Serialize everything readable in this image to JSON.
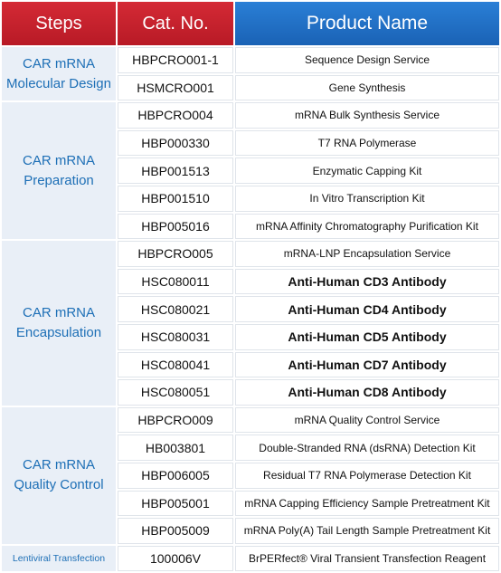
{
  "header": [
    "Steps",
    "Cat. No.",
    "Product Name"
  ],
  "groups": [
    {
      "step": [
        "CAR mRNA",
        "Molecular Design"
      ],
      "rows": [
        [
          "HBPCRO001-1",
          "Sequence Design Service"
        ],
        [
          "HSMCRO001",
          "Gene Synthesis"
        ]
      ]
    },
    {
      "step": [
        "CAR mRNA",
        "Preparation"
      ],
      "rows": [
        [
          "HBPCRO004",
          "mRNA Bulk Synthesis Service"
        ],
        [
          "HBP000330",
          "T7 RNA Polymerase"
        ],
        [
          "HBP001513",
          "Enzymatic Capping Kit"
        ],
        [
          "HBP001510",
          "In Vitro Transcription Kit"
        ],
        [
          "HBP005016",
          "mRNA Affinity Chromatography Purification Kit"
        ]
      ]
    },
    {
      "step": [
        "CAR mRNA",
        "Encapsulation"
      ],
      "rows": [
        [
          "HBPCRO005",
          "mRNA-LNP Encapsulation Service"
        ],
        [
          "HSC080011",
          "Anti-Human CD3 Antibody"
        ],
        [
          "HSC080021",
          "Anti-Human CD4 Antibody"
        ],
        [
          "HSC080031",
          "Anti-Human CD5 Antibody"
        ],
        [
          "HSC080041",
          "Anti-Human CD7 Antibody"
        ],
        [
          "HSC080051",
          "Anti-Human CD8 Antibody"
        ]
      ]
    },
    {
      "step": [
        "CAR mRNA",
        "Quality Control"
      ],
      "rows": [
        [
          "HBPCRO009",
          "mRNA Quality Control Service"
        ],
        [
          "HB003801",
          "Double-Stranded RNA (dsRNA) Detection Kit"
        ],
        [
          "HBP006005",
          "Residual T7 RNA Polymerase Detection Kit"
        ],
        [
          "HBP005001",
          "mRNA Capping Efficiency Sample Pretreatment Kit"
        ],
        [
          "HBP005009",
          "mRNA Poly(A) Tail Length Sample Pretreatment Kit"
        ]
      ]
    },
    {
      "step": [
        "Lentiviral Transfection"
      ],
      "rows": [
        [
          "100006V",
          "BrPERfect® Viral Transient Transfection Reagent"
        ]
      ]
    }
  ]
}
